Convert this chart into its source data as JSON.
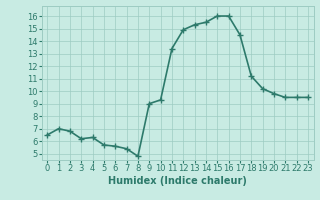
{
  "x": [
    0,
    1,
    2,
    3,
    4,
    5,
    6,
    7,
    8,
    9,
    10,
    11,
    12,
    13,
    14,
    15,
    16,
    17,
    18,
    19,
    20,
    21,
    22,
    23
  ],
  "y": [
    6.5,
    7.0,
    6.8,
    6.2,
    6.3,
    5.7,
    5.6,
    5.4,
    4.8,
    9.0,
    9.3,
    13.4,
    14.9,
    15.3,
    15.5,
    16.0,
    16.0,
    14.5,
    11.2,
    10.2,
    9.8,
    9.5,
    9.5,
    9.5
  ],
  "xlabel": "Humidex (Indice chaleur)",
  "ylim": [
    4.5,
    16.8
  ],
  "xlim": [
    -0.5,
    23.5
  ],
  "yticks": [
    5,
    6,
    7,
    8,
    9,
    10,
    11,
    12,
    13,
    14,
    15,
    16
  ],
  "xticks": [
    0,
    1,
    2,
    3,
    4,
    5,
    6,
    7,
    8,
    9,
    10,
    11,
    12,
    13,
    14,
    15,
    16,
    17,
    18,
    19,
    20,
    21,
    22,
    23
  ],
  "line_color": "#2d7a6b",
  "marker_color": "#2d7a6b",
  "bg_color": "#c8ebe3",
  "grid_color": "#9dccc2",
  "tick_label_color": "#2d7a6b",
  "xlabel_color": "#2d7a6b",
  "xlabel_fontsize": 7,
  "tick_fontsize": 6,
  "line_width": 1.2,
  "marker_size": 2.5
}
